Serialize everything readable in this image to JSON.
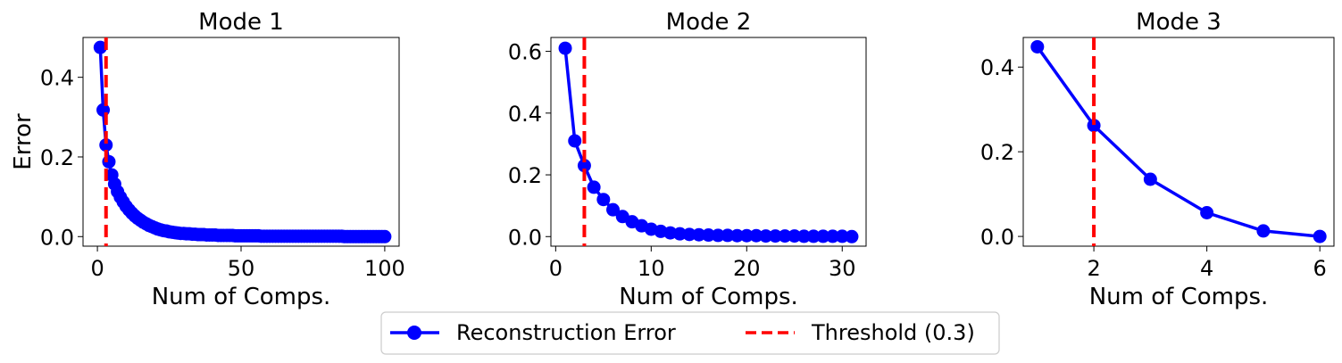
{
  "chart_data": [
    {
      "type": "line",
      "title": "Mode 1",
      "xlabel": "Num of Comps.",
      "ylabel": "Error",
      "xlim": [
        -5,
        105
      ],
      "ylim": [
        -0.024,
        0.5
      ],
      "xticks": [
        0,
        50,
        100
      ],
      "yticks": [
        0.0,
        0.2,
        0.4
      ],
      "threshold_x": 3,
      "grid": false,
      "series": [
        {
          "name": "Reconstruction Error",
          "color": "#0000ff",
          "x": [
            1,
            2,
            3,
            4,
            5,
            6,
            7,
            8,
            9,
            10,
            11,
            12,
            13,
            14,
            15,
            16,
            17,
            18,
            19,
            20,
            21,
            22,
            23,
            24,
            25,
            26,
            27,
            28,
            29,
            30,
            31,
            32,
            33,
            34,
            35,
            36,
            37,
            38,
            39,
            40,
            41,
            42,
            43,
            44,
            45,
            46,
            47,
            48,
            49,
            50,
            51,
            52,
            53,
            54,
            55,
            56,
            57,
            58,
            59,
            60,
            61,
            62,
            63,
            64,
            65,
            66,
            67,
            68,
            69,
            70,
            71,
            72,
            73,
            74,
            75,
            76,
            77,
            78,
            79,
            80,
            81,
            82,
            83,
            84,
            85,
            86,
            87,
            88,
            89,
            90,
            91,
            92,
            93,
            94,
            95,
            96,
            97,
            98,
            99,
            100
          ],
          "y": [
            0.475,
            0.318,
            0.23,
            0.188,
            0.155,
            0.132,
            0.113,
            0.099,
            0.087,
            0.076,
            0.067,
            0.059,
            0.052,
            0.046,
            0.041,
            0.036,
            0.032,
            0.028,
            0.025,
            0.022,
            0.019,
            0.017,
            0.015,
            0.014,
            0.012,
            0.011,
            0.01,
            0.009,
            0.008,
            0.008,
            0.007,
            0.007,
            0.006,
            0.006,
            0.005,
            0.005,
            0.005,
            0.004,
            0.004,
            0.004,
            0.004,
            0.003,
            0.003,
            0.003,
            0.003,
            0.003,
            0.003,
            0.002,
            0.002,
            0.002,
            0.002,
            0.002,
            0.002,
            0.002,
            0.002,
            0.002,
            0.001,
            0.001,
            0.001,
            0.001,
            0.001,
            0.001,
            0.001,
            0.001,
            0.001,
            0.001,
            0.001,
            0.001,
            0.001,
            0.001,
            0.001,
            0.001,
            0.001,
            0.001,
            0.001,
            0.001,
            0.001,
            0.001,
            0.001,
            0.001,
            0.001,
            0.001,
            0.001,
            0.001,
            0.001,
            0.0,
            0.0,
            0.0,
            0.0,
            0.0,
            0.0,
            0.0,
            0.0,
            0.0,
            0.0,
            0.0,
            0.0,
            0.0,
            0.0,
            0.0
          ]
        }
      ]
    },
    {
      "type": "line",
      "title": "Mode 2",
      "xlabel": "Num of Comps.",
      "ylabel": "",
      "xlim": [
        -0.5,
        32.5
      ],
      "ylim": [
        -0.031,
        0.645
      ],
      "xticks": [
        0,
        10,
        20,
        30
      ],
      "yticks": [
        0.0,
        0.2,
        0.4,
        0.6
      ],
      "threshold_x": 3,
      "grid": false,
      "series": [
        {
          "name": "Reconstruction Error",
          "color": "#0000ff",
          "x": [
            1,
            2,
            3,
            4,
            5,
            6,
            7,
            8,
            9,
            10,
            11,
            12,
            13,
            14,
            15,
            16,
            17,
            18,
            19,
            20,
            21,
            22,
            23,
            24,
            25,
            26,
            27,
            28,
            29,
            30,
            31
          ],
          "y": [
            0.61,
            0.31,
            0.23,
            0.16,
            0.12,
            0.087,
            0.065,
            0.048,
            0.035,
            0.024,
            0.017,
            0.012,
            0.009,
            0.007,
            0.006,
            0.005,
            0.004,
            0.004,
            0.003,
            0.003,
            0.003,
            0.002,
            0.002,
            0.002,
            0.002,
            0.001,
            0.001,
            0.001,
            0.001,
            0.001,
            0.0
          ]
        }
      ]
    },
    {
      "type": "line",
      "title": "Mode 3",
      "xlabel": "Num of Comps.",
      "ylabel": "",
      "xlim": [
        0.75,
        6.25
      ],
      "ylim": [
        -0.023,
        0.47
      ],
      "xticks": [
        2,
        4,
        6
      ],
      "yticks": [
        0.0,
        0.2,
        0.4
      ],
      "threshold_x": 2,
      "grid": false,
      "series": [
        {
          "name": "Reconstruction Error",
          "color": "#0000ff",
          "x": [
            1,
            2,
            3,
            4,
            5,
            6
          ],
          "y": [
            0.448,
            0.262,
            0.135,
            0.056,
            0.013,
            0.0
          ]
        }
      ]
    }
  ],
  "legend": {
    "placement": "bottom-center",
    "items": [
      {
        "label": "Reconstruction Error",
        "color": "#0000ff",
        "style": "line-marker"
      },
      {
        "label": "Threshold (0.3)",
        "color": "#ff0000",
        "style": "dashed"
      }
    ]
  }
}
